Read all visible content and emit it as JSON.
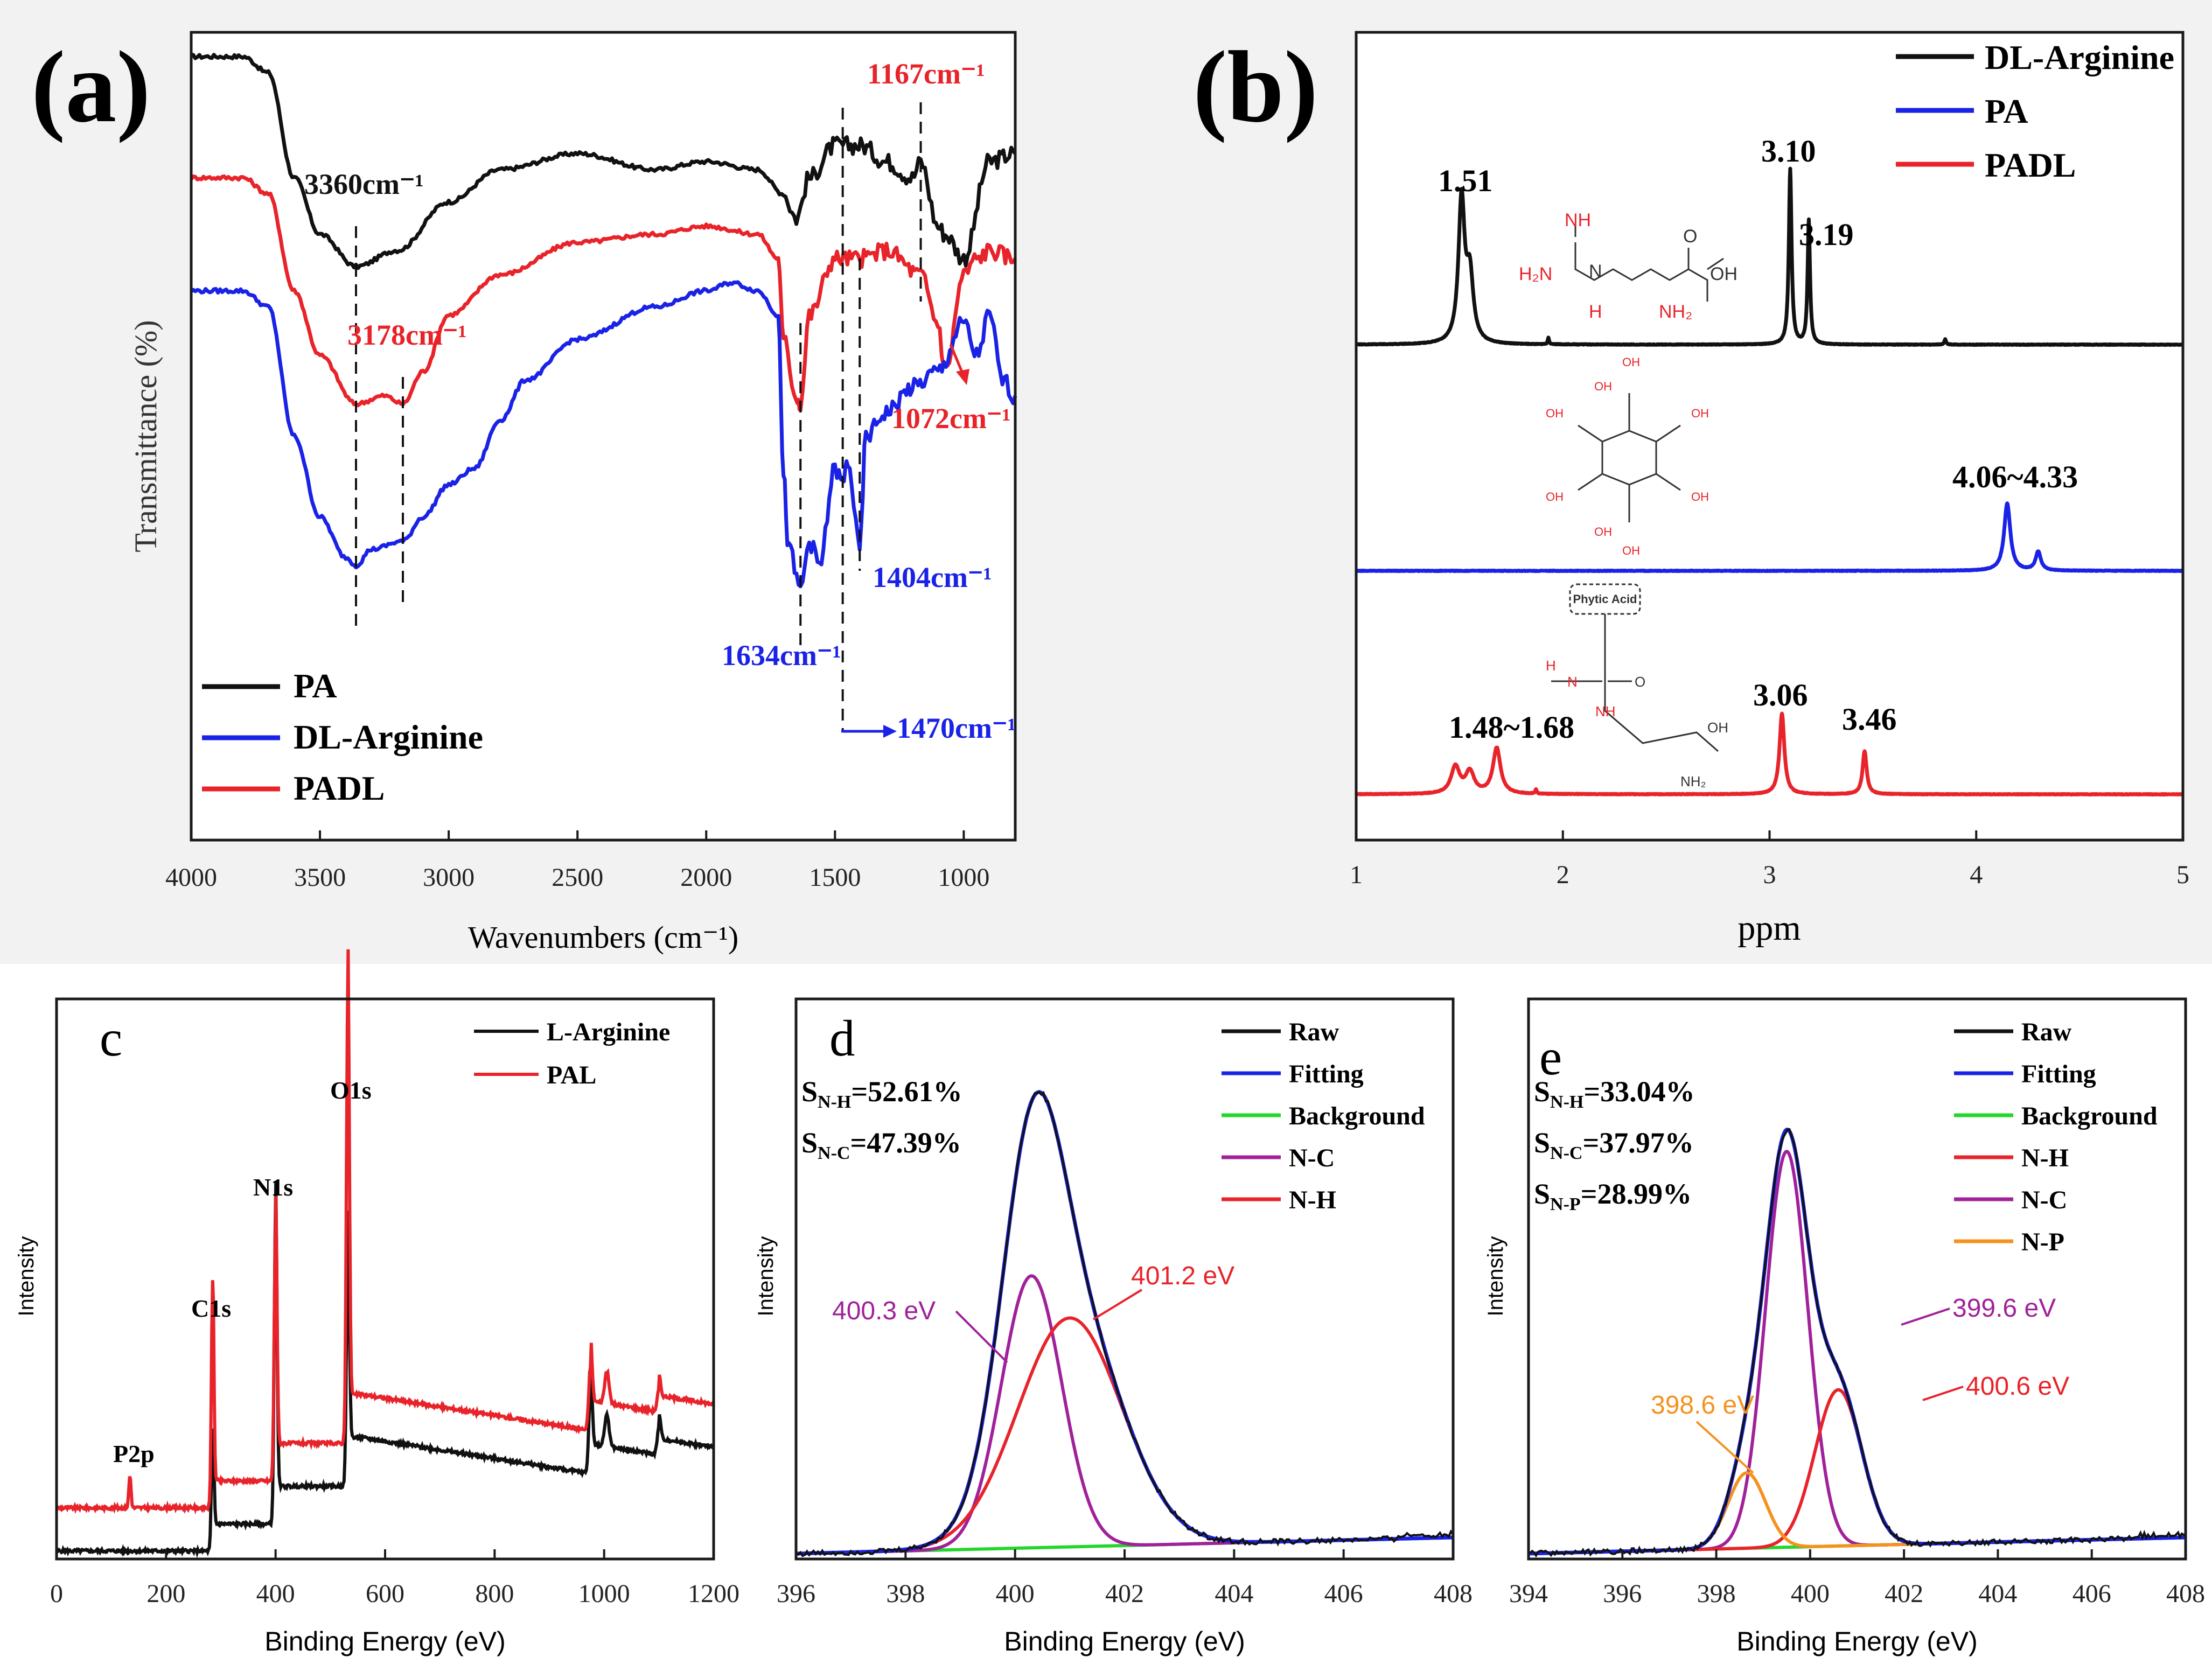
{
  "colors": {
    "black": "#111111",
    "red": "#e8232a",
    "blue": "#1a22e6",
    "green": "#22d62a",
    "purple": "#a0219a",
    "orange": "#f5921e",
    "panelbg": "#f2f2f2"
  },
  "chart_data": [
    {
      "panel": "(a)",
      "type": "line",
      "title": "",
      "xlabel": "Wavenumbers (cm⁻¹)",
      "ylabel": "Transmittance (%)",
      "xlim": [
        4000,
        800
      ],
      "x_ticks": [
        "4000",
        "3500",
        "3000",
        "2500",
        "2000",
        "1500",
        "1000"
      ],
      "legend": [
        "PA",
        "DL-Arginine",
        "PADL"
      ],
      "series": [
        {
          "name": "PA",
          "color": "#111111",
          "x": [
            4000,
            3800,
            3700,
            3600,
            3500,
            3360,
            3200,
            3000,
            2800,
            2500,
            2200,
            2000,
            1800,
            1700,
            1650,
            1600,
            1500,
            1400,
            1300,
            1200,
            1167,
            1100,
            1072,
            1000,
            900,
            800
          ],
          "y": [
            97,
            97,
            95,
            82,
            75,
            71,
            73,
            79,
            83,
            85,
            83,
            84,
            83,
            80,
            77,
            82,
            86,
            86,
            84,
            82,
            84,
            76,
            75,
            72,
            84,
            85
          ]
        },
        {
          "name": "PADL",
          "color": "#e8232a",
          "x": [
            4000,
            3800,
            3700,
            3600,
            3500,
            3360,
            3250,
            3178,
            3100,
            3000,
            2800,
            2500,
            2200,
            2000,
            1800,
            1720,
            1700,
            1650,
            1634,
            1600,
            1500,
            1404,
            1300,
            1167,
            1100,
            1072,
            1000,
            950,
            900,
            800
          ],
          "y": [
            82,
            82,
            80,
            68,
            60,
            54,
            55,
            54,
            58,
            65,
            70,
            74,
            75,
            76,
            75,
            72,
            62,
            55,
            54,
            65,
            72,
            72,
            73,
            70,
            64,
            58,
            70,
            72,
            73,
            72
          ]
        },
        {
          "name": "DL-Arginine",
          "color": "#1a22e6",
          "x": [
            4000,
            3800,
            3700,
            3600,
            3500,
            3400,
            3360,
            3300,
            3178,
            3100,
            3000,
            2900,
            2800,
            2700,
            2500,
            2200,
            2000,
            1900,
            1800,
            1720,
            1700,
            1680,
            1634,
            1600,
            1560,
            1500,
            1470,
            1450,
            1404,
            1380,
            1300,
            1200,
            1100,
            1000,
            950,
            900,
            850,
            800
          ],
          "y": [
            68,
            68,
            66,
            50,
            40,
            35,
            34,
            36,
            37,
            40,
            44,
            46,
            52,
            57,
            62,
            66,
            68,
            69,
            68,
            65,
            45,
            36,
            31,
            37,
            34,
            46,
            44,
            47,
            36,
            50,
            53,
            56,
            58,
            64,
            60,
            65,
            57,
            55
          ]
        }
      ],
      "annotations": [
        "3360cm⁻¹",
        "3178cm⁻¹",
        "1634cm⁻¹",
        "1404cm⁻¹",
        "1470cm⁻¹",
        "1167cm⁻¹",
        "1072cm⁻¹"
      ]
    },
    {
      "panel": "(b)",
      "type": "line",
      "title": "",
      "xlabel": "ppm",
      "ylabel": "",
      "xlim": [
        1,
        5
      ],
      "x_ticks": [
        "1",
        "2",
        "3",
        "4",
        "5"
      ],
      "legend": [
        "DL-Arginine",
        "PA",
        "PADL"
      ],
      "peaks": {
        "DL-Arginine": [
          {
            "ppm": 1.51,
            "label": "1.51"
          },
          {
            "ppm": 3.1,
            "label": "3.10"
          },
          {
            "ppm": 3.19,
            "label": "3.19"
          }
        ],
        "PA": [
          {
            "ppm": 4.15,
            "label": "4.06~4.33"
          },
          {
            "ppm": 4.3
          }
        ],
        "PADL": [
          {
            "ppm": 1.48
          },
          {
            "ppm": 1.68,
            "label": "1.48~1.68"
          },
          {
            "ppm": 3.06,
            "label": "3.06"
          },
          {
            "ppm": 3.46,
            "label": "3.46"
          }
        ]
      },
      "structure_labels": {
        "imine": "NH",
        "amine2": "H₂N",
        "nh": "N",
        "h": "H",
        "nh2": "NH₂",
        "oh": "OH",
        "o": "O",
        "phytic": "Phytic Acid"
      }
    },
    {
      "panel": "c",
      "type": "line",
      "xlabel": "Binding Energy (eV)",
      "ylabel": "Intensity",
      "xlim": [
        0,
        1200
      ],
      "x_ticks": [
        "0",
        "200",
        "400",
        "600",
        "800",
        "1000",
        "1200"
      ],
      "legend": [
        "L-Arginine",
        "PAL"
      ],
      "peak_labels": [
        {
          "label": "P2p",
          "ev": 134
        },
        {
          "label": "C1s",
          "ev": 285
        },
        {
          "label": "N1s",
          "ev": 400
        },
        {
          "label": "O1s",
          "ev": 532
        }
      ]
    },
    {
      "panel": "d",
      "type": "line",
      "xlabel": "Binding Energy (eV)",
      "ylabel": "Intensity",
      "xlim": [
        396,
        408
      ],
      "x_ticks": [
        "396",
        "398",
        "400",
        "402",
        "404",
        "406",
        "408"
      ],
      "legend": [
        "Raw",
        "Fitting",
        "Background",
        "N-C",
        "N-H"
      ],
      "area_ratios": [
        {
          "sub": "N-H",
          "value": "=52.61%"
        },
        {
          "sub": "N-C",
          "value": "=47.39%"
        }
      ],
      "components": [
        {
          "name": "N-C",
          "center": 400.3,
          "label": "400.3 eV"
        },
        {
          "name": "N-H",
          "center": 401.2,
          "label": "401.2 eV"
        }
      ]
    },
    {
      "panel": "e",
      "type": "line",
      "xlabel": "Binding Energy (eV)",
      "ylabel": "Intensity",
      "xlim": [
        394,
        408
      ],
      "x_ticks": [
        "394",
        "396",
        "398",
        "400",
        "402",
        "404",
        "406",
        "408"
      ],
      "legend": [
        "Raw",
        "Fitting",
        "Background",
        "N-H",
        "N-C",
        "N-P"
      ],
      "area_ratios": [
        {
          "sub": "N-H",
          "value": "=33.04%"
        },
        {
          "sub": "N-C",
          "value": "=37.97%"
        },
        {
          "sub": "N-P",
          "value": "=28.99%"
        }
      ],
      "components": [
        {
          "name": "N-C",
          "center": 399.6,
          "label": "399.6 eV"
        },
        {
          "name": "N-H",
          "center": 400.6,
          "label": "400.6 eV"
        },
        {
          "name": "N-P",
          "center": 398.6,
          "label": "398.6 eV"
        }
      ]
    }
  ],
  "panel_labels": {
    "a": "(a)",
    "b": "(b)",
    "c": "c",
    "d": "d",
    "e": "e"
  },
  "area_symbol": "S"
}
